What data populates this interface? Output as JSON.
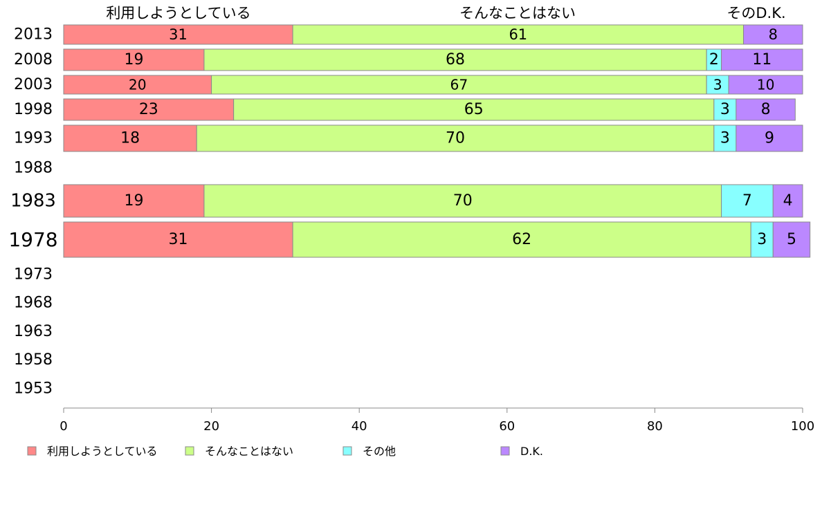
{
  "chart_data": {
    "type": "bar",
    "orientation": "horizontal",
    "stacked": true,
    "title": "",
    "xlabel": "",
    "ylabel": "",
    "xlim": [
      0,
      100
    ],
    "x_ticks": [
      "0",
      "20",
      "40",
      "60",
      "80",
      "100"
    ],
    "categories": [
      "2013",
      "2008",
      "2003",
      "1998",
      "1993",
      "1988",
      "1983",
      "1978",
      "1973",
      "1968",
      "1963",
      "1958",
      "1953"
    ],
    "series": [
      {
        "name": "利用しようとしている",
        "color": "#FF8888",
        "values": [
          31,
          19,
          20,
          23,
          18,
          null,
          19,
          31,
          null,
          null,
          null,
          null,
          null
        ]
      },
      {
        "name": "そんなことはない",
        "color": "#CCFF88",
        "values": [
          61,
          68,
          67,
          65,
          70,
          null,
          70,
          62,
          null,
          null,
          null,
          null,
          null
        ]
      },
      {
        "name": "その他",
        "color": "#88FFFF",
        "values": [
          0,
          2,
          3,
          3,
          3,
          null,
          7,
          3,
          null,
          null,
          null,
          null,
          null
        ]
      },
      {
        "name": "D.K.",
        "color": "#BB88FF",
        "values": [
          8,
          11,
          10,
          8,
          9,
          null,
          4,
          5,
          null,
          null,
          null,
          null,
          null
        ]
      }
    ],
    "top_labels": [
      "利用しようとしている",
      "そんなことはない",
      "そのD.K."
    ],
    "legend": {
      "position": "bottom"
    },
    "grid": false
  }
}
